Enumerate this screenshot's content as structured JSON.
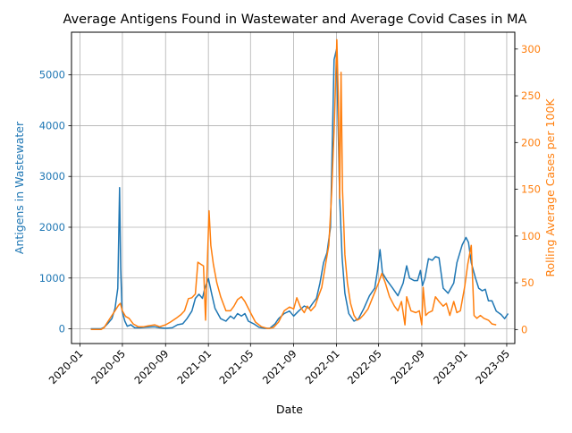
{
  "chart_data": {
    "type": "line",
    "title": "Average Antigens Found in Wastewater and Average Covid Cases in MA",
    "xlabel": "Date",
    "ylabel_left": "Antigens in Wastewater",
    "ylabel_right": "Rolling Average Cases per 100K",
    "x_ticks": [
      "2020-01",
      "2020-05",
      "2020-09",
      "2021-01",
      "2021-05",
      "2021-09",
      "2022-01",
      "2022-05",
      "2022-09",
      "2023-01",
      "2023-05"
    ],
    "y_left_ticks": [
      0,
      1000,
      2000,
      3000,
      4000,
      5000
    ],
    "y_right_ticks": [
      0,
      50,
      100,
      150,
      200,
      250,
      300
    ],
    "xlim": [
      "2019-12-08",
      "2023-05-24"
    ],
    "ylim_left": [
      -290,
      5840
    ],
    "ylim_right": [
      -15,
      318
    ],
    "grid": true,
    "colors": {
      "wastewater": "#1f77b4",
      "cases": "#ff7f0e",
      "axis": "#000000",
      "grid": "#b0b0b0"
    },
    "series": [
      {
        "axis": "left",
        "points": [
          [
            "2020-02-01",
            0
          ],
          [
            "2020-02-15",
            0
          ],
          [
            "2020-03-01",
            0
          ],
          [
            "2020-03-10",
            30
          ],
          [
            "2020-03-20",
            100
          ],
          [
            "2020-04-01",
            200
          ],
          [
            "2020-04-10",
            400
          ],
          [
            "2020-04-18",
            800
          ],
          [
            "2020-04-23",
            2780
          ],
          [
            "2020-04-26",
            1200
          ],
          [
            "2020-04-30",
            350
          ],
          [
            "2020-05-08",
            150
          ],
          [
            "2020-05-15",
            50
          ],
          [
            "2020-05-25",
            80
          ],
          [
            "2020-06-05",
            20
          ],
          [
            "2020-06-20",
            20
          ],
          [
            "2020-07-10",
            30
          ],
          [
            "2020-08-01",
            40
          ],
          [
            "2020-08-15",
            20
          ],
          [
            "2020-09-01",
            10
          ],
          [
            "2020-09-20",
            20
          ],
          [
            "2020-10-05",
            80
          ],
          [
            "2020-10-20",
            100
          ],
          [
            "2020-11-01",
            200
          ],
          [
            "2020-11-15",
            350
          ],
          [
            "2020-11-25",
            600
          ],
          [
            "2020-12-05",
            680
          ],
          [
            "2020-12-15",
            600
          ],
          [
            "2020-12-22",
            800
          ],
          [
            "2021-01-01",
            990
          ],
          [
            "2021-01-10",
            700
          ],
          [
            "2021-01-20",
            400
          ],
          [
            "2021-02-05",
            200
          ],
          [
            "2021-02-20",
            150
          ],
          [
            "2021-03-05",
            250
          ],
          [
            "2021-03-15",
            200
          ],
          [
            "2021-03-25",
            300
          ],
          [
            "2021-04-05",
            250
          ],
          [
            "2021-04-15",
            300
          ],
          [
            "2021-04-25",
            150
          ],
          [
            "2021-05-10",
            100
          ],
          [
            "2021-05-25",
            30
          ],
          [
            "2021-06-10",
            10
          ],
          [
            "2021-06-25",
            10
          ],
          [
            "2021-07-10",
            100
          ],
          [
            "2021-07-20",
            200
          ],
          [
            "2021-08-05",
            300
          ],
          [
            "2021-08-20",
            350
          ],
          [
            "2021-09-01",
            250
          ],
          [
            "2021-09-15",
            350
          ],
          [
            "2021-10-01",
            450
          ],
          [
            "2021-10-15",
            400
          ],
          [
            "2021-10-25",
            500
          ],
          [
            "2021-11-05",
            600
          ],
          [
            "2021-11-15",
            900
          ],
          [
            "2021-11-25",
            1300
          ],
          [
            "2021-12-05",
            1500
          ],
          [
            "2021-12-15",
            2000
          ],
          [
            "2021-12-25",
            5300
          ],
          [
            "2022-01-01",
            5500
          ],
          [
            "2022-01-05",
            4200
          ],
          [
            "2022-01-10",
            2600
          ],
          [
            "2022-01-17",
            1400
          ],
          [
            "2022-01-25",
            700
          ],
          [
            "2022-02-05",
            300
          ],
          [
            "2022-02-20",
            150
          ],
          [
            "2022-03-05",
            200
          ],
          [
            "2022-03-20",
            400
          ],
          [
            "2022-04-05",
            650
          ],
          [
            "2022-04-20",
            800
          ],
          [
            "2022-04-28",
            1150
          ],
          [
            "2022-05-05",
            1560
          ],
          [
            "2022-05-12",
            1100
          ],
          [
            "2022-05-25",
            950
          ],
          [
            "2022-06-10",
            800
          ],
          [
            "2022-06-25",
            650
          ],
          [
            "2022-07-10",
            900
          ],
          [
            "2022-07-20",
            1240
          ],
          [
            "2022-07-28",
            1000
          ],
          [
            "2022-08-10",
            950
          ],
          [
            "2022-08-20",
            950
          ],
          [
            "2022-08-28",
            1150
          ],
          [
            "2022-09-03",
            850
          ],
          [
            "2022-09-10",
            1000
          ],
          [
            "2022-09-20",
            1380
          ],
          [
            "2022-10-01",
            1350
          ],
          [
            "2022-10-10",
            1420
          ],
          [
            "2022-10-20",
            1400
          ],
          [
            "2022-11-01",
            800
          ],
          [
            "2022-11-15",
            700
          ],
          [
            "2022-12-01",
            900
          ],
          [
            "2022-12-10",
            1300
          ],
          [
            "2022-12-25",
            1650
          ],
          [
            "2023-01-05",
            1800
          ],
          [
            "2023-01-12",
            1700
          ],
          [
            "2023-01-20",
            1300
          ],
          [
            "2023-02-01",
            1000
          ],
          [
            "2023-02-10",
            800
          ],
          [
            "2023-02-20",
            750
          ],
          [
            "2023-03-01",
            780
          ],
          [
            "2023-03-10",
            550
          ],
          [
            "2023-03-20",
            550
          ],
          [
            "2023-04-01",
            350
          ],
          [
            "2023-04-15",
            280
          ],
          [
            "2023-04-25",
            200
          ],
          [
            "2023-05-05",
            300
          ]
        ]
      },
      {
        "axis": "right",
        "points": [
          [
            "2020-02-01",
            0
          ],
          [
            "2020-03-01",
            0
          ],
          [
            "2020-03-10",
            2
          ],
          [
            "2020-03-20",
            8
          ],
          [
            "2020-04-01",
            15
          ],
          [
            "2020-04-10",
            20
          ],
          [
            "2020-04-20",
            26
          ],
          [
            "2020-04-25",
            28
          ],
          [
            "2020-05-01",
            20
          ],
          [
            "2020-05-10",
            14
          ],
          [
            "2020-05-20",
            12
          ],
          [
            "2020-06-01",
            6
          ],
          [
            "2020-06-15",
            3
          ],
          [
            "2020-07-01",
            3
          ],
          [
            "2020-07-15",
            4
          ],
          [
            "2020-08-01",
            5
          ],
          [
            "2020-08-15",
            3
          ],
          [
            "2020-09-01",
            5
          ],
          [
            "2020-09-15",
            8
          ],
          [
            "2020-10-01",
            12
          ],
          [
            "2020-10-15",
            16
          ],
          [
            "2020-10-25",
            20
          ],
          [
            "2020-11-05",
            33
          ],
          [
            "2020-11-15",
            34
          ],
          [
            "2020-11-25",
            38
          ],
          [
            "2020-12-02",
            72
          ],
          [
            "2020-12-10",
            70
          ],
          [
            "2020-12-18",
            68
          ],
          [
            "2020-12-24",
            10
          ],
          [
            "2020-12-28",
            60
          ],
          [
            "2021-01-03",
            127
          ],
          [
            "2021-01-08",
            90
          ],
          [
            "2021-01-15",
            70
          ],
          [
            "2021-01-25",
            50
          ],
          [
            "2021-02-05",
            35
          ],
          [
            "2021-02-20",
            20
          ],
          [
            "2021-03-05",
            20
          ],
          [
            "2021-03-15",
            25
          ],
          [
            "2021-03-25",
            32
          ],
          [
            "2021-04-05",
            35
          ],
          [
            "2021-04-15",
            30
          ],
          [
            "2021-05-01",
            18
          ],
          [
            "2021-05-15",
            8
          ],
          [
            "2021-06-01",
            3
          ],
          [
            "2021-06-20",
            1
          ],
          [
            "2021-07-05",
            2
          ],
          [
            "2021-07-20",
            8
          ],
          [
            "2021-08-05",
            20
          ],
          [
            "2021-08-20",
            24
          ],
          [
            "2021-09-01",
            22
          ],
          [
            "2021-09-10",
            34
          ],
          [
            "2021-09-20",
            24
          ],
          [
            "2021-10-01",
            18
          ],
          [
            "2021-10-10",
            25
          ],
          [
            "2021-10-20",
            20
          ],
          [
            "2021-11-01",
            25
          ],
          [
            "2021-11-10",
            35
          ],
          [
            "2021-11-20",
            45
          ],
          [
            "2021-12-01",
            70
          ],
          [
            "2021-12-10",
            90
          ],
          [
            "2021-12-18",
            145
          ],
          [
            "2021-12-26",
            220
          ],
          [
            "2022-01-02",
            310
          ],
          [
            "2022-01-06",
            250
          ],
          [
            "2022-01-10",
            140
          ],
          [
            "2022-01-14",
            275
          ],
          [
            "2022-01-18",
            150
          ],
          [
            "2022-01-25",
            80
          ],
          [
            "2022-02-01",
            50
          ],
          [
            "2022-02-10",
            28
          ],
          [
            "2022-02-20",
            15
          ],
          [
            "2022-03-01",
            10
          ],
          [
            "2022-03-10",
            12
          ],
          [
            "2022-03-20",
            16
          ],
          [
            "2022-04-01",
            22
          ],
          [
            "2022-04-15",
            35
          ],
          [
            "2022-05-01",
            50
          ],
          [
            "2022-05-10",
            60
          ],
          [
            "2022-05-20",
            50
          ],
          [
            "2022-06-01",
            35
          ],
          [
            "2022-06-15",
            25
          ],
          [
            "2022-06-25",
            20
          ],
          [
            "2022-07-05",
            30
          ],
          [
            "2022-07-15",
            5
          ],
          [
            "2022-07-20",
            35
          ],
          [
            "2022-08-01",
            20
          ],
          [
            "2022-08-15",
            18
          ],
          [
            "2022-08-25",
            20
          ],
          [
            "2022-09-01",
            5
          ],
          [
            "2022-09-05",
            45
          ],
          [
            "2022-09-12",
            15
          ],
          [
            "2022-09-20",
            18
          ],
          [
            "2022-10-01",
            20
          ],
          [
            "2022-10-10",
            35
          ],
          [
            "2022-10-20",
            30
          ],
          [
            "2022-11-01",
            25
          ],
          [
            "2022-11-10",
            28
          ],
          [
            "2022-11-20",
            15
          ],
          [
            "2022-12-01",
            30
          ],
          [
            "2022-12-10",
            18
          ],
          [
            "2022-12-20",
            20
          ],
          [
            "2023-01-01",
            45
          ],
          [
            "2023-01-10",
            70
          ],
          [
            "2023-01-20",
            90
          ],
          [
            "2023-01-28",
            15
          ],
          [
            "2023-02-05",
            12
          ],
          [
            "2023-02-15",
            15
          ],
          [
            "2023-02-25",
            12
          ],
          [
            "2023-03-10",
            10
          ],
          [
            "2023-03-20",
            6
          ],
          [
            "2023-04-01",
            5
          ]
        ]
      }
    ]
  }
}
